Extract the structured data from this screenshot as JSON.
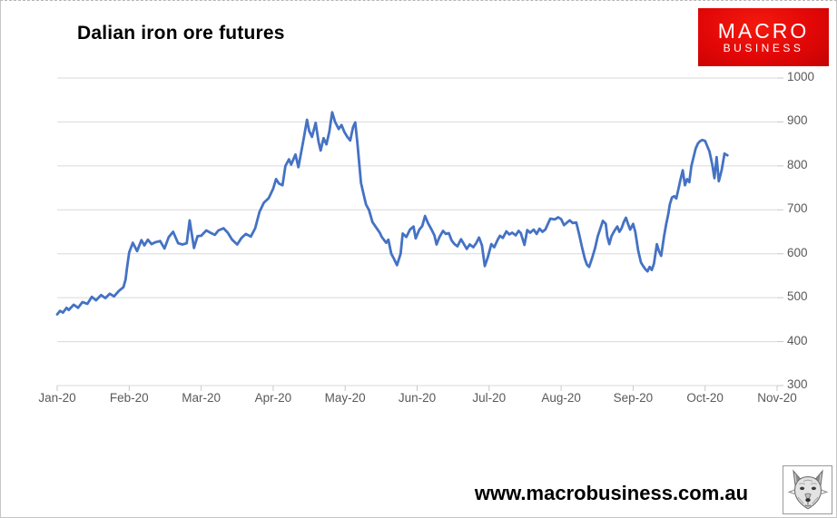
{
  "page": {
    "title": "Dalian iron ore futures",
    "footer_url": "www.macrobusiness.com.au"
  },
  "logo": {
    "line1": "MACRO",
    "line2": "BUSINESS",
    "bg_color": "#dd0606",
    "text_color": "#ffffff"
  },
  "icons": {
    "wolf": "wolf-head-icon"
  },
  "chart_data": {
    "type": "line",
    "title": "Dalian iron ore futures",
    "xlabel": "",
    "ylabel": "",
    "ylim": [
      300,
      1000
    ],
    "y_tick_labels": [
      "1000",
      "900",
      "800",
      "700",
      "600",
      "500",
      "400",
      "300"
    ],
    "y_axis_side": "right",
    "x_tick_labels": [
      "Jan-20",
      "Feb-20",
      "Mar-20",
      "Apr-20",
      "May-20",
      "Jun-20",
      "Jul-20",
      "Aug-20",
      "Sep-20",
      "Oct-20",
      "Nov-20"
    ],
    "x_range_months": [
      0,
      10
    ],
    "grid": "horizontal",
    "gridline_color": "#d9d9d9",
    "tick_color": "#c8c8c8",
    "axis_label_color": "#595959",
    "legend": "none",
    "series": [
      {
        "name": "Dalian iron ore futures price",
        "color": "#4472c4",
        "points": [
          [
            0.0,
            462
          ],
          [
            0.04,
            470
          ],
          [
            0.08,
            466
          ],
          [
            0.13,
            477
          ],
          [
            0.16,
            472
          ],
          [
            0.23,
            484
          ],
          [
            0.29,
            477
          ],
          [
            0.35,
            490
          ],
          [
            0.42,
            486
          ],
          [
            0.48,
            502
          ],
          [
            0.54,
            494
          ],
          [
            0.61,
            506
          ],
          [
            0.67,
            499
          ],
          [
            0.73,
            509
          ],
          [
            0.79,
            503
          ],
          [
            0.86,
            516
          ],
          [
            0.92,
            524
          ],
          [
            0.95,
            541
          ],
          [
            0.97,
            568
          ],
          [
            1.0,
            603
          ],
          [
            1.05,
            625
          ],
          [
            1.11,
            606
          ],
          [
            1.17,
            631
          ],
          [
            1.21,
            619
          ],
          [
            1.26,
            632
          ],
          [
            1.31,
            622
          ],
          [
            1.36,
            626
          ],
          [
            1.43,
            629
          ],
          [
            1.49,
            612
          ],
          [
            1.55,
            638
          ],
          [
            1.61,
            650
          ],
          [
            1.68,
            624
          ],
          [
            1.74,
            621
          ],
          [
            1.8,
            624
          ],
          [
            1.84,
            676
          ],
          [
            1.9,
            613
          ],
          [
            1.95,
            640
          ],
          [
            2.0,
            641
          ],
          [
            2.07,
            653
          ],
          [
            2.14,
            647
          ],
          [
            2.19,
            643
          ],
          [
            2.24,
            653
          ],
          [
            2.31,
            658
          ],
          [
            2.37,
            648
          ],
          [
            2.43,
            632
          ],
          [
            2.5,
            621
          ],
          [
            2.56,
            636
          ],
          [
            2.62,
            645
          ],
          [
            2.69,
            639
          ],
          [
            2.75,
            658
          ],
          [
            2.81,
            695
          ],
          [
            2.87,
            716
          ],
          [
            2.94,
            727
          ],
          [
            3.0,
            748
          ],
          [
            3.04,
            770
          ],
          [
            3.08,
            760
          ],
          [
            3.13,
            756
          ],
          [
            3.17,
            800
          ],
          [
            3.22,
            815
          ],
          [
            3.25,
            803
          ],
          [
            3.31,
            826
          ],
          [
            3.35,
            797
          ],
          [
            3.42,
            858
          ],
          [
            3.47,
            905
          ],
          [
            3.5,
            880
          ],
          [
            3.54,
            866
          ],
          [
            3.59,
            898
          ],
          [
            3.63,
            855
          ],
          [
            3.66,
            835
          ],
          [
            3.7,
            863
          ],
          [
            3.74,
            849
          ],
          [
            3.78,
            878
          ],
          [
            3.82,
            922
          ],
          [
            3.86,
            900
          ],
          [
            3.91,
            884
          ],
          [
            3.95,
            893
          ],
          [
            3.99,
            877
          ],
          [
            4.03,
            866
          ],
          [
            4.07,
            858
          ],
          [
            4.11,
            888
          ],
          [
            4.14,
            899
          ],
          [
            4.17,
            852
          ],
          [
            4.22,
            762
          ],
          [
            4.26,
            733
          ],
          [
            4.29,
            712
          ],
          [
            4.33,
            700
          ],
          [
            4.38,
            672
          ],
          [
            4.43,
            660
          ],
          [
            4.48,
            648
          ],
          [
            4.51,
            638
          ],
          [
            4.57,
            625
          ],
          [
            4.6,
            632
          ],
          [
            4.64,
            600
          ],
          [
            4.68,
            588
          ],
          [
            4.72,
            574
          ],
          [
            4.77,
            600
          ],
          [
            4.8,
            646
          ],
          [
            4.85,
            638
          ],
          [
            4.9,
            655
          ],
          [
            4.95,
            662
          ],
          [
            4.98,
            635
          ],
          [
            5.03,
            655
          ],
          [
            5.07,
            663
          ],
          [
            5.11,
            686
          ],
          [
            5.15,
            670
          ],
          [
            5.2,
            655
          ],
          [
            5.24,
            642
          ],
          [
            5.27,
            621
          ],
          [
            5.31,
            638
          ],
          [
            5.36,
            652
          ],
          [
            5.4,
            645
          ],
          [
            5.44,
            647
          ],
          [
            5.48,
            630
          ],
          [
            5.52,
            622
          ],
          [
            5.56,
            617
          ],
          [
            5.61,
            633
          ],
          [
            5.65,
            622
          ],
          [
            5.69,
            611
          ],
          [
            5.73,
            621
          ],
          [
            5.78,
            615
          ],
          [
            5.82,
            624
          ],
          [
            5.86,
            637
          ],
          [
            5.9,
            619
          ],
          [
            5.94,
            572
          ],
          [
            5.98,
            591
          ],
          [
            6.03,
            622
          ],
          [
            6.07,
            615
          ],
          [
            6.12,
            632
          ],
          [
            6.15,
            641
          ],
          [
            6.19,
            636
          ],
          [
            6.24,
            651
          ],
          [
            6.28,
            644
          ],
          [
            6.32,
            648
          ],
          [
            6.37,
            642
          ],
          [
            6.41,
            652
          ],
          [
            6.44,
            647
          ],
          [
            6.49,
            620
          ],
          [
            6.53,
            654
          ],
          [
            6.57,
            648
          ],
          [
            6.62,
            655
          ],
          [
            6.66,
            645
          ],
          [
            6.7,
            657
          ],
          [
            6.74,
            650
          ],
          [
            6.78,
            655
          ],
          [
            6.85,
            680
          ],
          [
            6.91,
            678
          ],
          [
            6.96,
            683
          ],
          [
            7.0,
            679
          ],
          [
            7.04,
            665
          ],
          [
            7.09,
            672
          ],
          [
            7.12,
            676
          ],
          [
            7.16,
            670
          ],
          [
            7.21,
            671
          ],
          [
            7.25,
            645
          ],
          [
            7.29,
            615
          ],
          [
            7.33,
            588
          ],
          [
            7.36,
            575
          ],
          [
            7.39,
            570
          ],
          [
            7.43,
            590
          ],
          [
            7.47,
            612
          ],
          [
            7.51,
            640
          ],
          [
            7.55,
            660
          ],
          [
            7.58,
            675
          ],
          [
            7.62,
            668
          ],
          [
            7.64,
            640
          ],
          [
            7.67,
            622
          ],
          [
            7.7,
            640
          ],
          [
            7.74,
            652
          ],
          [
            7.78,
            662
          ],
          [
            7.81,
            650
          ],
          [
            7.84,
            658
          ],
          [
            7.87,
            672
          ],
          [
            7.9,
            682
          ],
          [
            7.93,
            668
          ],
          [
            7.96,
            655
          ],
          [
            8.0,
            668
          ],
          [
            8.03,
            650
          ],
          [
            8.07,
            607
          ],
          [
            8.11,
            580
          ],
          [
            8.14,
            572
          ],
          [
            8.17,
            565
          ],
          [
            8.2,
            560
          ],
          [
            8.23,
            570
          ],
          [
            8.26,
            563
          ],
          [
            8.29,
            578
          ],
          [
            8.31,
            600
          ],
          [
            8.33,
            622
          ],
          [
            8.36,
            606
          ],
          [
            8.39,
            595
          ],
          [
            8.43,
            640
          ],
          [
            8.46,
            668
          ],
          [
            8.49,
            692
          ],
          [
            8.51,
            712
          ],
          [
            8.54,
            728
          ],
          [
            8.57,
            731
          ],
          [
            8.6,
            726
          ],
          [
            8.63,
            748
          ],
          [
            8.66,
            770
          ],
          [
            8.69,
            790
          ],
          [
            8.72,
            756
          ],
          [
            8.75,
            770
          ],
          [
            8.78,
            763
          ],
          [
            8.81,
            800
          ],
          [
            8.84,
            820
          ],
          [
            8.87,
            840
          ],
          [
            8.9,
            851
          ],
          [
            8.93,
            856
          ],
          [
            8.96,
            859
          ],
          [
            9.0,
            857
          ],
          [
            9.03,
            845
          ],
          [
            9.06,
            833
          ],
          [
            9.1,
            803
          ],
          [
            9.13,
            772
          ],
          [
            9.16,
            820
          ],
          [
            9.19,
            765
          ],
          [
            9.23,
            790
          ],
          [
            9.27,
            828
          ],
          [
            9.31,
            824
          ]
        ]
      }
    ]
  }
}
